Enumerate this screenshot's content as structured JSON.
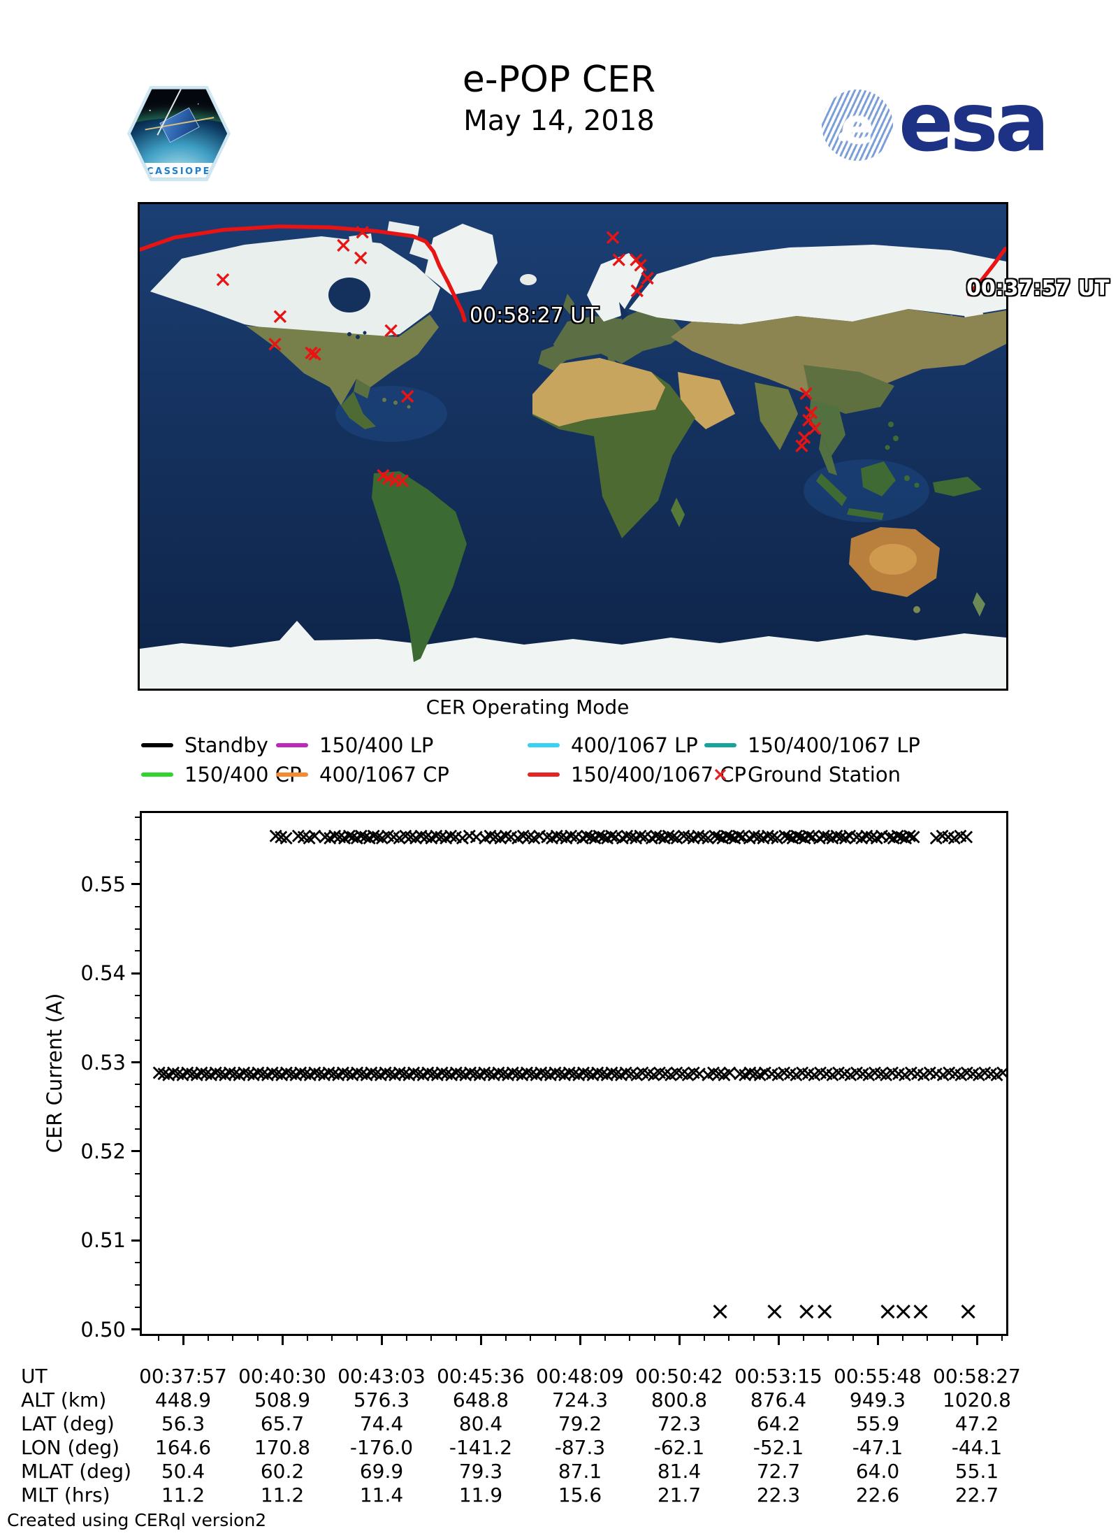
{
  "header": {
    "title": "e-POP CER",
    "date": "May 14, 2018",
    "patch_text": "CASSIOPE",
    "esa_text": "esa",
    "esa_globe_letter": "e",
    "esa_color": "#1d3185"
  },
  "map": {
    "end_label": "00:58:27 UT",
    "start_label": "00:37:57 UT",
    "trajectory_color": "#e81414",
    "station_color": "#e81414",
    "stations_pct": [
      [
        9.6,
        15.6
      ],
      [
        23.5,
        8.5
      ],
      [
        25.7,
        5.8
      ],
      [
        25.5,
        11.1
      ],
      [
        16.2,
        23.2
      ],
      [
        15.6,
        28.9
      ],
      [
        19.8,
        30.7
      ],
      [
        20.2,
        31.0
      ],
      [
        29.0,
        26.1
      ],
      [
        30.9,
        39.7
      ],
      [
        28.1,
        56.0
      ],
      [
        28.7,
        56.6
      ],
      [
        29.5,
        57.0
      ],
      [
        30.3,
        57.1
      ],
      [
        54.6,
        6.9
      ],
      [
        55.3,
        11.5
      ],
      [
        57.3,
        11.5
      ],
      [
        57.8,
        12.6
      ],
      [
        58.6,
        15.3
      ],
      [
        57.4,
        17.9
      ],
      [
        76.9,
        39.1
      ],
      [
        77.5,
        43.0
      ],
      [
        77.2,
        44.6
      ],
      [
        77.9,
        46.3
      ],
      [
        76.7,
        48.2
      ],
      [
        76.4,
        49.9
      ]
    ],
    "trajectory_left_pct": [
      [
        0,
        9.4
      ],
      [
        4,
        6.9
      ],
      [
        9.7,
        5.3
      ],
      [
        16.1,
        4.6
      ],
      [
        22,
        4.8
      ],
      [
        27.4,
        5.6
      ],
      [
        31.5,
        6.6
      ],
      [
        33,
        7.7
      ],
      [
        33.9,
        9.8
      ],
      [
        34.6,
        12.8
      ],
      [
        35.6,
        16.2
      ],
      [
        36.5,
        19.6
      ],
      [
        37.2,
        22.2
      ],
      [
        37.5,
        24.0
      ]
    ],
    "trajectory_right_pct": [
      [
        95.7,
        18.6
      ],
      [
        97.2,
        15.6
      ],
      [
        98.6,
        12.4
      ],
      [
        99.9,
        9.2
      ]
    ]
  },
  "legend": {
    "title": "CER Operating Mode",
    "rows": [
      [
        {
          "label": "Standby",
          "color": "#000000",
          "symbol": "line"
        },
        {
          "label": "150/400 LP",
          "color": "#bb28bb",
          "symbol": "line"
        },
        {
          "label": "400/1067 LP",
          "color": "#35d2f2",
          "symbol": "line"
        },
        {
          "label": "150/400/1067 LP",
          "color": "#16a39a",
          "symbol": "line"
        }
      ],
      [
        {
          "label": "150/400 CP",
          "color": "#2fd42f",
          "symbol": "line"
        },
        {
          "label": "400/1067 CP",
          "color": "#f68a2e",
          "symbol": "line"
        },
        {
          "label": "150/400/1067 CP",
          "color": "#e62222",
          "symbol": "line"
        },
        {
          "label": "Ground Station",
          "color": "#e62222",
          "symbol": "cross"
        }
      ]
    ]
  },
  "chart_data": {
    "type": "scatter",
    "title": "",
    "xlabel": "",
    "ylabel": "CER Current (A)",
    "marker": "x",
    "marker_color": "#000000",
    "ylim": [
      0.4995,
      0.558
    ],
    "y_tick_labels": [
      "0.50",
      "0.51",
      "0.52",
      "0.53",
      "0.54",
      "0.55"
    ],
    "x_tick_labels": [
      "00:37:57",
      "00:40:30",
      "00:43:03",
      "00:45:36",
      "00:48:09",
      "00:50:42",
      "00:53:15",
      "00:55:48",
      "00:58:27"
    ],
    "x_range_ut": [
      "00:37:57",
      "00:58:27"
    ],
    "series": [
      {
        "name": "upper level ~0.5553 A",
        "y_value": 0.5553,
        "x_runs_frac": [
          [
            0.155,
            0.167,
            3
          ],
          [
            0.181,
            0.2,
            4
          ],
          [
            0.212,
            0.24,
            6
          ],
          [
            0.244,
            0.273,
            7
          ],
          [
            0.278,
            0.298,
            4
          ],
          [
            0.305,
            0.329,
            5
          ],
          [
            0.335,
            0.363,
            6
          ],
          [
            0.371,
            0.387,
            3
          ],
          [
            0.397,
            0.427,
            6
          ],
          [
            0.435,
            0.46,
            5
          ],
          [
            0.469,
            0.502,
            7
          ],
          [
            0.51,
            0.548,
            9
          ],
          [
            0.556,
            0.582,
            6
          ],
          [
            0.59,
            0.619,
            7
          ],
          [
            0.627,
            0.655,
            6
          ],
          [
            0.663,
            0.695,
            8
          ],
          [
            0.703,
            0.735,
            7
          ],
          [
            0.744,
            0.776,
            8
          ],
          [
            0.784,
            0.819,
            8
          ],
          [
            0.827,
            0.856,
            6
          ],
          [
            0.865,
            0.893,
            7
          ],
          [
            0.919,
            0.954,
            6
          ]
        ]
      },
      {
        "name": "main level ~0.5287 A",
        "y_value": 0.5287,
        "x_runs_frac": [
          [
            0.02,
            0.56,
            100
          ],
          [
            0.566,
            0.645,
            13
          ],
          [
            0.655,
            0.68,
            5
          ],
          [
            0.692,
            0.721,
            6
          ],
          [
            0.729,
            0.855,
            19
          ],
          [
            0.861,
            0.919,
            9
          ],
          [
            0.927,
            0.996,
            11
          ]
        ]
      },
      {
        "name": "dips ~0.502 A",
        "y_value": 0.502,
        "x_frac": [
          0.669,
          0.732,
          0.769,
          0.79,
          0.863,
          0.881,
          0.901,
          0.956
        ]
      }
    ]
  },
  "table": {
    "rows": [
      {
        "label": "UT",
        "values": [
          "00:37:57",
          "00:40:30",
          "00:43:03",
          "00:45:36",
          "00:48:09",
          "00:50:42",
          "00:53:15",
          "00:55:48",
          "00:58:27"
        ]
      },
      {
        "label": "ALT (km)",
        "values": [
          "448.9",
          "508.9",
          "576.3",
          "648.8",
          "724.3",
          "800.8",
          "876.4",
          "949.3",
          "1020.8"
        ]
      },
      {
        "label": "LAT (deg)",
        "values": [
          "56.3",
          "65.7",
          "74.4",
          "80.4",
          "79.2",
          "72.3",
          "64.2",
          "55.9",
          "47.2"
        ]
      },
      {
        "label": "LON (deg)",
        "values": [
          "164.6",
          "170.8",
          "-176.0",
          "-141.2",
          "-87.3",
          "-62.1",
          "-52.1",
          "-47.1",
          "-44.1"
        ]
      },
      {
        "label": "MLAT (deg)",
        "values": [
          "50.4",
          "60.2",
          "69.9",
          "79.3",
          "87.1",
          "81.4",
          "72.7",
          "64.0",
          "55.1"
        ]
      },
      {
        "label": "MLT (hrs)",
        "values": [
          "11.2",
          "11.2",
          "11.4",
          "11.9",
          "15.6",
          "21.7",
          "22.3",
          "22.6",
          "22.7"
        ]
      }
    ]
  },
  "footer": "Created using CERql version2"
}
